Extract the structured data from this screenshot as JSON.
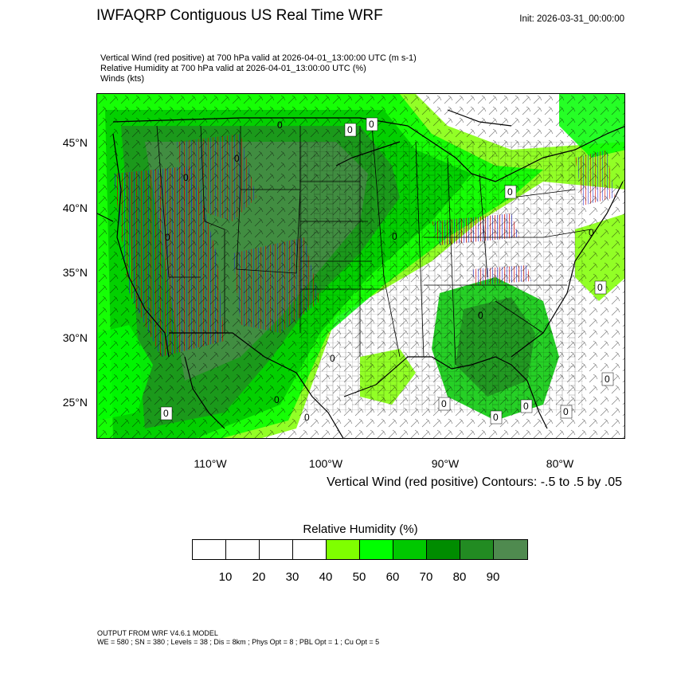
{
  "header": {
    "title": "IWFAQRP Contiguous US Real Time WRF",
    "init": "Init: 2026-03-31_00:00:00",
    "subtitle_lines": [
      "Vertical Wind (red positive) at 700 hPa valid at 2026-04-01_13:00:00 UTC   (m s-1)",
      "Relative Humidity at 700 hPa valid at 2026-04-01_13:00:00 UTC   (%)",
      "Winds   (kts)"
    ]
  },
  "map": {
    "lat_labels": [
      "45°N",
      "40°N",
      "35°N",
      "30°N",
      "25°N"
    ],
    "lon_labels": [
      "110°W",
      "100°W",
      "90°W",
      "80°W"
    ],
    "contour_note": "Vertical Wind (red positive) Contours: -.5 to .5 by .05",
    "zero_label": "0",
    "colors": {
      "rh_50": "#7fff00",
      "rh_60": "#00ff00",
      "rh_70": "#00c800",
      "rh_80": "#008c00",
      "rh_90": "#228b22",
      "rh_100": "#4f8a4f",
      "updraft": "#d00000",
      "downdraft": "#2020d0"
    }
  },
  "labelbar": {
    "title": "Relative Humidity  (%)",
    "colors": [
      "#ffffff",
      "#ffffff",
      "#ffffff",
      "#ffffff",
      "#7fff00",
      "#00ff00",
      "#00c800",
      "#008c00",
      "#228b22",
      "#4f8a4f"
    ],
    "labels": [
      "10",
      "20",
      "30",
      "40",
      "50",
      "60",
      "70",
      "80",
      "90"
    ]
  },
  "footer": {
    "line1": "OUTPUT FROM WRF V4.6.1 MODEL",
    "line2": "WE = 580 ; SN = 380 ; Levels = 38 ; Dis = 8km ; Phys Opt = 8 ; PBL Opt = 1 ; Cu Opt = 5"
  }
}
